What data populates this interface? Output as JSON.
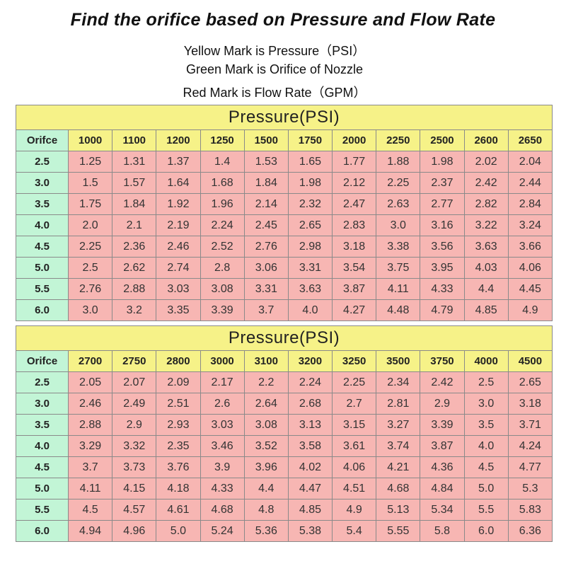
{
  "title": "Find the orifice based on Pressure and Flow Rate",
  "subtitles": [
    "Yellow Mark is Pressure（PSI）",
    "Green Mark is Orifice of Nozzle",
    "Red Mark is Flow Rate（GPM）"
  ],
  "colors": {
    "pressure": "#f6f288",
    "orifice": "#c2f5d6",
    "flow": "#f7b6b3"
  },
  "chart_data": [
    {
      "type": "table",
      "title": "Pressure(PSI)",
      "corner_label": "Orifce",
      "columns": [
        "1000",
        "1100",
        "1200",
        "1250",
        "1500",
        "1750",
        "2000",
        "2250",
        "2500",
        "2600",
        "2650"
      ],
      "rows": [
        {
          "orifice": "2.5",
          "values": [
            "1.25",
            "1.31",
            "1.37",
            "1.4",
            "1.53",
            "1.65",
            "1.77",
            "1.88",
            "1.98",
            "2.02",
            "2.04"
          ]
        },
        {
          "orifice": "3.0",
          "values": [
            "1.5",
            "1.57",
            "1.64",
            "1.68",
            "1.84",
            "1.98",
            "2.12",
            "2.25",
            "2.37",
            "2.42",
            "2.44"
          ]
        },
        {
          "orifice": "3.5",
          "values": [
            "1.75",
            "1.84",
            "1.92",
            "1.96",
            "2.14",
            "2.32",
            "2.47",
            "2.63",
            "2.77",
            "2.82",
            "2.84"
          ]
        },
        {
          "orifice": "4.0",
          "values": [
            "2.0",
            "2.1",
            "2.19",
            "2.24",
            "2.45",
            "2.65",
            "2.83",
            "3.0",
            "3.16",
            "3.22",
            "3.24"
          ]
        },
        {
          "orifice": "4.5",
          "values": [
            "2.25",
            "2.36",
            "2.46",
            "2.52",
            "2.76",
            "2.98",
            "3.18",
            "3.38",
            "3.56",
            "3.63",
            "3.66"
          ]
        },
        {
          "orifice": "5.0",
          "values": [
            "2.5",
            "2.62",
            "2.74",
            "2.8",
            "3.06",
            "3.31",
            "3.54",
            "3.75",
            "3.95",
            "4.03",
            "4.06"
          ]
        },
        {
          "orifice": "5.5",
          "values": [
            "2.76",
            "2.88",
            "3.03",
            "3.08",
            "3.31",
            "3.63",
            "3.87",
            "4.11",
            "4.33",
            "4.4",
            "4.45"
          ]
        },
        {
          "orifice": "6.0",
          "values": [
            "3.0",
            "3.2",
            "3.35",
            "3.39",
            "3.7",
            "4.0",
            "4.27",
            "4.48",
            "4.79",
            "4.85",
            "4.9"
          ]
        }
      ]
    },
    {
      "type": "table",
      "title": "Pressure(PSI)",
      "corner_label": "Orifce",
      "columns": [
        "2700",
        "2750",
        "2800",
        "3000",
        "3100",
        "3200",
        "3250",
        "3500",
        "3750",
        "4000",
        "4500"
      ],
      "rows": [
        {
          "orifice": "2.5",
          "values": [
            "2.05",
            "2.07",
            "2.09",
            "2.17",
            "2.2",
            "2.24",
            "2.25",
            "2.34",
            "2.42",
            "2.5",
            "2.65"
          ]
        },
        {
          "orifice": "3.0",
          "values": [
            "2.46",
            "2.49",
            "2.51",
            "2.6",
            "2.64",
            "2.68",
            "2.7",
            "2.81",
            "2.9",
            "3.0",
            "3.18"
          ]
        },
        {
          "orifice": "3.5",
          "values": [
            "2.88",
            "2.9",
            "2.93",
            "3.03",
            "3.08",
            "3.13",
            "3.15",
            "3.27",
            "3.39",
            "3.5",
            "3.71"
          ]
        },
        {
          "orifice": "4.0",
          "values": [
            "3.29",
            "3.32",
            "2.35",
            "3.46",
            "3.52",
            "3.58",
            "3.61",
            "3.74",
            "3.87",
            "4.0",
            "4.24"
          ]
        },
        {
          "orifice": "4.5",
          "values": [
            "3.7",
            "3.73",
            "3.76",
            "3.9",
            "3.96",
            "4.02",
            "4.06",
            "4.21",
            "4.36",
            "4.5",
            "4.77"
          ]
        },
        {
          "orifice": "5.0",
          "values": [
            "4.11",
            "4.15",
            "4.18",
            "4.33",
            "4.4",
            "4.47",
            "4.51",
            "4.68",
            "4.84",
            "5.0",
            "5.3"
          ]
        },
        {
          "orifice": "5.5",
          "values": [
            "4.5",
            "4.57",
            "4.61",
            "4.68",
            "4.8",
            "4.85",
            "4.9",
            "5.13",
            "5.34",
            "5.5",
            "5.83"
          ]
        },
        {
          "orifice": "6.0",
          "values": [
            "4.94",
            "4.96",
            "5.0",
            "5.24",
            "5.36",
            "5.38",
            "5.4",
            "5.55",
            "5.8",
            "6.0",
            "6.36"
          ]
        }
      ]
    }
  ]
}
